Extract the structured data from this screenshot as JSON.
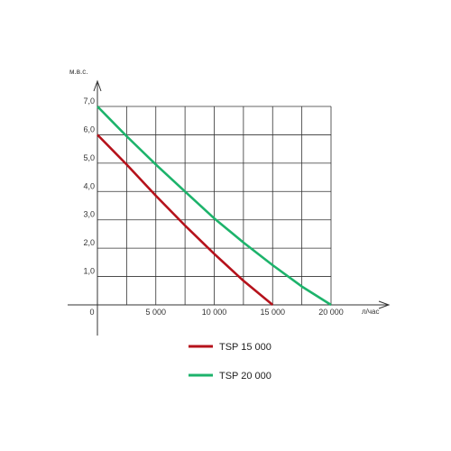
{
  "chart_data": {
    "type": "line",
    "ylabel": "м.в.с.",
    "xlabel": "л/час",
    "xlim": [
      0,
      20000
    ],
    "ylim": [
      0,
      7
    ],
    "x_ticks": [
      {
        "value": 0,
        "label": "0"
      },
      {
        "value": 5000,
        "label": "5 000"
      },
      {
        "value": 10000,
        "label": "10 000"
      },
      {
        "value": 15000,
        "label": "15 000"
      },
      {
        "value": 20000,
        "label": "20 000"
      }
    ],
    "y_ticks": [
      {
        "value": 1,
        "label": "1,0"
      },
      {
        "value": 2,
        "label": "2,0"
      },
      {
        "value": 3,
        "label": "3,0"
      },
      {
        "value": 4,
        "label": "4,0"
      },
      {
        "value": 5,
        "label": "5,0"
      },
      {
        "value": 6,
        "label": "6,0"
      },
      {
        "value": 7,
        "label": "7,0"
      }
    ],
    "grid": true,
    "grid_x_step": 2500,
    "grid_y_step": 1,
    "legend_position": "bottom",
    "series": [
      {
        "name": "TSP 15 000",
        "color": "#b5121b",
        "points": [
          [
            0,
            6.0
          ],
          [
            2500,
            4.95
          ],
          [
            5000,
            3.85
          ],
          [
            7500,
            2.8
          ],
          [
            10000,
            1.8
          ],
          [
            12500,
            0.85
          ],
          [
            15000,
            0.0
          ]
        ]
      },
      {
        "name": "TSP 20 000",
        "color": "#1db36b",
        "points": [
          [
            0,
            7.0
          ],
          [
            2500,
            5.95
          ],
          [
            5000,
            4.95
          ],
          [
            7500,
            4.0
          ],
          [
            10000,
            3.05
          ],
          [
            12500,
            2.2
          ],
          [
            15000,
            1.4
          ],
          [
            17500,
            0.65
          ],
          [
            20000,
            0.0
          ]
        ]
      }
    ]
  }
}
